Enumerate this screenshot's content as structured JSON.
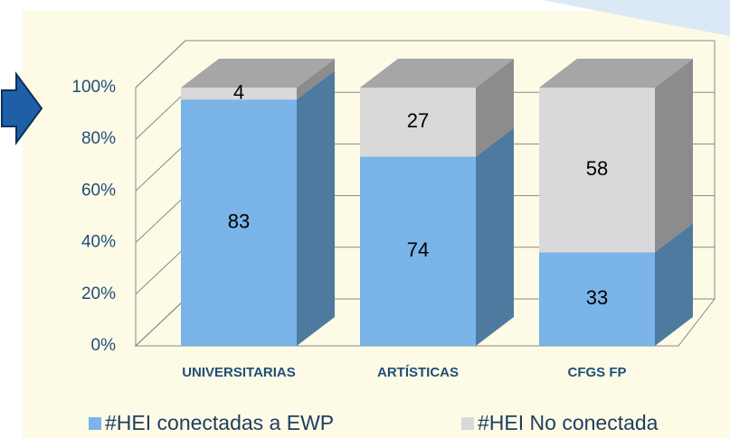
{
  "chart_data": {
    "type": "bar",
    "stacking": "percent",
    "categories": [
      "UNIVERSITARIAS",
      "ARTÍSTICAS",
      "CFGS FP"
    ],
    "series": [
      {
        "name": "#HEI conectadas a EWP",
        "color": "#7ab4e8",
        "side_color": "#4f7aa0",
        "values": [
          83,
          74,
          33
        ]
      },
      {
        "name": "#HEI No conectada",
        "color": "#d9d9d9",
        "side_color": "#8c8c8c",
        "values": [
          4,
          27,
          58
        ]
      }
    ],
    "ylim": [
      0,
      100
    ],
    "yticks": [
      {
        "value": 0,
        "label": "0%"
      },
      {
        "value": 20,
        "label": "20%"
      },
      {
        "value": 40,
        "label": "40%"
      },
      {
        "value": 60,
        "label": "60%"
      },
      {
        "value": 80,
        "label": "80%"
      },
      {
        "value": 100,
        "label": "100%"
      }
    ],
    "grid": true,
    "legend": "bottom"
  }
}
